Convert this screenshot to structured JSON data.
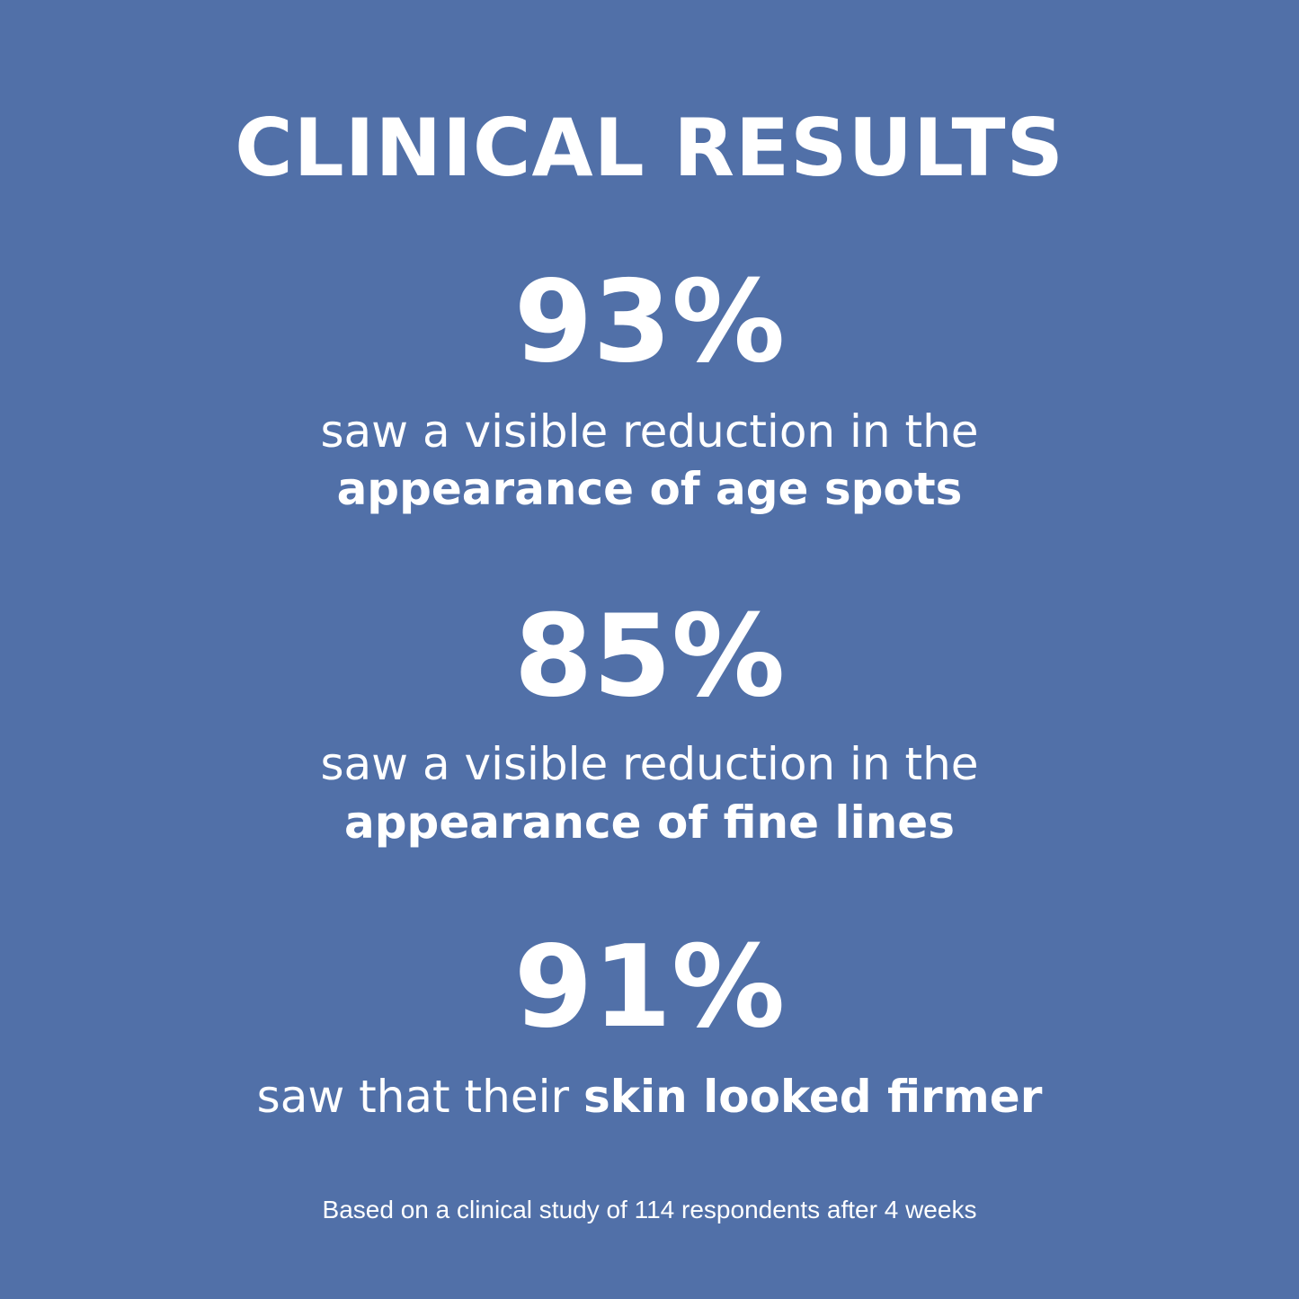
{
  "title": "CLINICAL RESULTS",
  "background_color": "#5170a8",
  "stats": [
    {
      "value": "93%",
      "text": "saw a visible reduction in the",
      "bold": "appearance of age spots"
    },
    {
      "value": "85%",
      "text": "saw a visible reduction in the",
      "bold": "appearance of fine lines"
    },
    {
      "value": "91%",
      "text": "saw that their ",
      "bold": "skin looked firmer"
    }
  ],
  "footnote": "Based on a clinical study of 114 respondents after 4 weeks"
}
